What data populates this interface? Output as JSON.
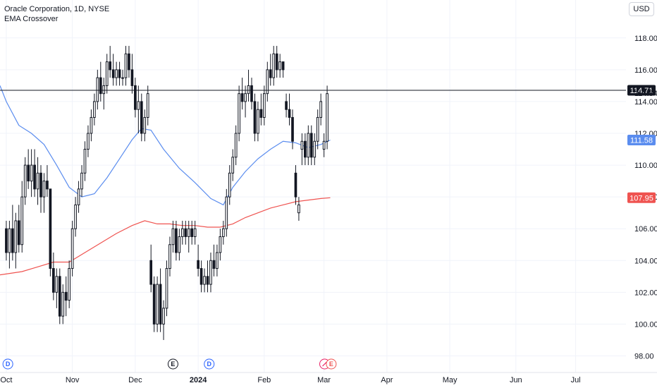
{
  "legend": {
    "title": "Oracle Corporation, 1D, NYSE",
    "indicator": "EMA Crossover"
  },
  "currency": "USD",
  "colors": {
    "ema_short": "#5b8def",
    "ema_long": "#ef5350",
    "candle": "#131722"
  },
  "price_labels": {
    "last": "114.71",
    "current": "114.54",
    "ema_short": "111.58",
    "ema_long": "107.95"
  },
  "events": [
    {
      "icon": "dividend-icon",
      "label": "D",
      "date": "Oct 10"
    },
    {
      "icon": "earnings-icon",
      "label": "E",
      "date": "Dec 11"
    },
    {
      "icon": "dividend-icon",
      "label": "D",
      "date": "Jan 9"
    },
    {
      "icon": "split-icon",
      "label": "",
      "date": "Mar 11"
    },
    {
      "icon": "earnings-icon",
      "label": "E",
      "date": "Mar 12"
    }
  ],
  "chart_data": {
    "type": "candlestick",
    "title": "Oracle Corporation, 1D, NYSE",
    "y_ticks": [
      98,
      100,
      102,
      104,
      106,
      108,
      110,
      112,
      114,
      116,
      118
    ],
    "ylim": [
      97.4,
      119.5
    ],
    "x_ticks": [
      {
        "label": "Oct",
        "i": 0,
        "bold": false
      },
      {
        "label": "Nov",
        "i": 21,
        "bold": false
      },
      {
        "label": "Dec",
        "i": 41,
        "bold": false
      },
      {
        "label": "2024",
        "i": 61,
        "bold": true
      },
      {
        "label": "Feb",
        "i": 82,
        "bold": false
      },
      {
        "label": "Mar",
        "i": 101,
        "bold": false
      },
      {
        "label": "Apr",
        "i": 121,
        "bold": false
      },
      {
        "label": "May",
        "i": 141,
        "bold": false
      },
      {
        "label": "Jun",
        "i": 162,
        "bold": false
      },
      {
        "label": "Jul",
        "i": 181,
        "bold": false
      }
    ],
    "xlim": [
      -2,
      197
    ],
    "candles": [
      [
        106.0,
        106.5,
        104.0,
        104.5
      ],
      [
        104.5,
        106.5,
        103.5,
        106.0
      ],
      [
        106.0,
        107.5,
        104.0,
        104.5
      ],
      [
        104.5,
        107.0,
        103.5,
        106.5
      ],
      [
        106.5,
        107.5,
        104.5,
        105.0
      ],
      [
        105.0,
        109.0,
        104.5,
        108.0
      ],
      [
        108.0,
        110.5,
        107.5,
        110.0
      ],
      [
        110.0,
        111.0,
        108.5,
        109.0
      ],
      [
        109.0,
        111.0,
        108.0,
        110.0
      ],
      [
        110.0,
        111.0,
        108.0,
        108.5
      ],
      [
        108.5,
        110.5,
        107.5,
        109.5
      ],
      [
        109.5,
        110.0,
        107.0,
        108.0
      ],
      [
        108.0,
        109.5,
        107.0,
        109.0
      ],
      [
        109.0,
        110.0,
        108.0,
        108.5
      ],
      [
        108.5,
        108.5,
        103.0,
        103.5
      ],
      [
        103.5,
        104.5,
        101.5,
        102.0
      ],
      [
        102.0,
        103.5,
        101.0,
        103.0
      ],
      [
        103.0,
        103.5,
        100.0,
        100.5
      ],
      [
        100.5,
        102.5,
        100.0,
        102.0
      ],
      [
        102.0,
        103.0,
        100.5,
        101.5
      ],
      [
        101.5,
        104.0,
        101.0,
        103.5
      ],
      [
        103.5,
        106.5,
        103.0,
        106.0
      ],
      [
        106.0,
        108.0,
        105.5,
        107.5
      ],
      [
        107.5,
        109.0,
        107.0,
        108.5
      ],
      [
        108.5,
        110.0,
        108.0,
        109.5
      ],
      [
        109.5,
        111.5,
        109.0,
        111.0
      ],
      [
        111.0,
        112.5,
        110.5,
        112.0
      ],
      [
        112.0,
        113.5,
        111.5,
        113.0
      ],
      [
        113.0,
        114.5,
        112.5,
        114.0
      ],
      [
        114.0,
        116.0,
        113.5,
        115.5
      ],
      [
        115.5,
        116.5,
        114.0,
        114.5
      ],
      [
        114.5,
        115.5,
        113.5,
        115.0
      ],
      [
        115.0,
        117.0,
        114.5,
        116.5
      ],
      [
        116.5,
        117.5,
        115.5,
        116.0
      ],
      [
        116.0,
        117.0,
        115.0,
        115.5
      ],
      [
        115.5,
        116.5,
        115.0,
        116.0
      ],
      [
        116.0,
        116.5,
        115.0,
        115.5
      ],
      [
        115.5,
        116.0,
        115.0,
        115.5
      ],
      [
        115.5,
        117.5,
        115.0,
        117.0
      ],
      [
        117.0,
        117.5,
        115.5,
        116.0
      ],
      [
        116.0,
        117.0,
        114.5,
        115.0
      ],
      [
        115.0,
        115.5,
        113.0,
        113.5
      ],
      [
        113.5,
        115.0,
        112.0,
        114.0
      ],
      [
        114.0,
        114.5,
        111.5,
        112.0
      ],
      [
        112.0,
        113.5,
        111.5,
        113.0
      ],
      [
        113.0,
        115.0,
        112.5,
        114.5
      ],
      [
        104.0,
        105.0,
        102.0,
        102.5
      ],
      [
        102.5,
        103.0,
        99.5,
        100.0
      ],
      [
        100.0,
        103.0,
        99.5,
        102.5
      ],
      [
        102.5,
        103.5,
        99.5,
        100.0
      ],
      [
        100.0,
        101.5,
        99.0,
        101.0
      ],
      [
        101.0,
        104.0,
        100.5,
        103.5
      ],
      [
        103.5,
        105.5,
        103.0,
        105.0
      ],
      [
        105.0,
        106.5,
        104.5,
        106.0
      ],
      [
        106.0,
        106.5,
        104.0,
        104.5
      ],
      [
        104.5,
        106.0,
        104.0,
        105.5
      ],
      [
        105.5,
        106.5,
        105.0,
        106.0
      ],
      [
        106.0,
        106.5,
        105.0,
        105.5
      ],
      [
        105.5,
        106.5,
        104.5,
        106.0
      ],
      [
        106.0,
        106.5,
        105.0,
        105.5
      ],
      [
        105.5,
        106.5,
        105.0,
        106.0
      ],
      [
        104.0,
        105.0,
        103.0,
        103.5
      ],
      [
        103.5,
        104.0,
        102.0,
        102.5
      ],
      [
        102.5,
        103.5,
        102.0,
        103.0
      ],
      [
        103.0,
        104.0,
        102.0,
        102.5
      ],
      [
        102.5,
        104.5,
        102.0,
        104.0
      ],
      [
        104.0,
        105.0,
        103.0,
        103.5
      ],
      [
        103.5,
        105.0,
        103.0,
        104.5
      ],
      [
        104.5,
        106.0,
        104.0,
        105.5
      ],
      [
        105.5,
        106.5,
        105.0,
        106.0
      ],
      [
        106.0,
        108.5,
        105.5,
        108.0
      ],
      [
        108.0,
        110.0,
        107.5,
        109.5
      ],
      [
        109.5,
        111.0,
        109.0,
        110.5
      ],
      [
        110.5,
        112.5,
        110.0,
        112.0
      ],
      [
        112.0,
        115.0,
        111.5,
        114.5
      ],
      [
        114.5,
        115.5,
        113.5,
        114.0
      ],
      [
        114.0,
        115.0,
        113.0,
        114.5
      ],
      [
        114.5,
        116.0,
        114.0,
        115.0
      ],
      [
        115.0,
        115.5,
        113.5,
        114.0
      ],
      [
        114.0,
        114.5,
        111.5,
        112.0
      ],
      [
        112.0,
        114.0,
        111.5,
        113.5
      ],
      [
        113.5,
        114.5,
        112.5,
        113.0
      ],
      [
        113.0,
        115.0,
        112.5,
        114.5
      ],
      [
        114.5,
        116.5,
        114.0,
        116.0
      ],
      [
        116.0,
        117.0,
        115.0,
        115.5
      ],
      [
        115.5,
        117.5,
        115.0,
        117.0
      ],
      [
        117.0,
        117.5,
        115.5,
        116.0
      ],
      [
        116.0,
        117.0,
        115.5,
        116.5
      ],
      [
        116.5,
        116.5,
        115.5,
        116.0
      ],
      [
        114.0,
        114.5,
        113.0,
        113.5
      ],
      [
        113.5,
        114.5,
        112.5,
        113.0
      ],
      [
        113.0,
        113.5,
        111.0,
        111.5
      ],
      [
        109.5,
        110.0,
        107.5,
        108.0
      ],
      [
        107.0,
        108.0,
        106.5,
        107.5
      ],
      [
        111.0,
        112.0,
        110.0,
        111.5
      ],
      [
        111.5,
        112.0,
        110.0,
        110.5
      ],
      [
        110.5,
        112.5,
        110.0,
        112.0
      ],
      [
        112.0,
        112.5,
        110.0,
        110.5
      ],
      [
        110.5,
        112.0,
        110.0,
        111.5
      ],
      [
        111.5,
        113.5,
        111.0,
        113.0
      ],
      [
        113.0,
        114.5,
        112.5,
        114.0
      ],
      [
        111.0,
        112.0,
        110.5,
        111.5
      ],
      [
        111.5,
        115.0,
        111.0,
        114.5
      ]
    ],
    "ema_short": [
      [
        -2,
        115.0
      ],
      [
        0,
        114.0
      ],
      [
        4,
        112.5
      ],
      [
        8,
        112.0
      ],
      [
        12,
        111.3
      ],
      [
        16,
        110.0
      ],
      [
        20,
        108.6
      ],
      [
        24,
        108.0
      ],
      [
        28,
        108.2
      ],
      [
        32,
        109.2
      ],
      [
        36,
        110.4
      ],
      [
        40,
        111.6
      ],
      [
        43,
        112.3
      ],
      [
        46,
        112.2
      ],
      [
        50,
        111.0
      ],
      [
        55,
        109.8
      ],
      [
        60,
        108.9
      ],
      [
        65,
        107.9
      ],
      [
        69,
        107.5
      ],
      [
        72,
        108.6
      ],
      [
        76,
        109.6
      ],
      [
        80,
        110.4
      ],
      [
        84,
        111.0
      ],
      [
        88,
        111.5
      ],
      [
        92,
        111.4
      ],
      [
        96,
        111.1
      ],
      [
        100,
        111.3
      ],
      [
        103,
        111.58
      ]
    ],
    "ema_long": [
      [
        -2,
        103.1
      ],
      [
        5,
        103.3
      ],
      [
        10,
        103.6
      ],
      [
        15,
        103.9
      ],
      [
        20,
        103.9
      ],
      [
        25,
        104.5
      ],
      [
        30,
        105.1
      ],
      [
        35,
        105.7
      ],
      [
        40,
        106.2
      ],
      [
        44,
        106.5
      ],
      [
        48,
        106.3
      ],
      [
        52,
        106.3
      ],
      [
        56,
        106.2
      ],
      [
        60,
        106.2
      ],
      [
        64,
        106.1
      ],
      [
        68,
        106.1
      ],
      [
        72,
        106.3
      ],
      [
        76,
        106.7
      ],
      [
        80,
        107.0
      ],
      [
        84,
        107.3
      ],
      [
        88,
        107.5
      ],
      [
        92,
        107.7
      ],
      [
        96,
        107.8
      ],
      [
        100,
        107.9
      ],
      [
        103,
        107.95
      ]
    ],
    "horizontal_line": 114.71
  }
}
